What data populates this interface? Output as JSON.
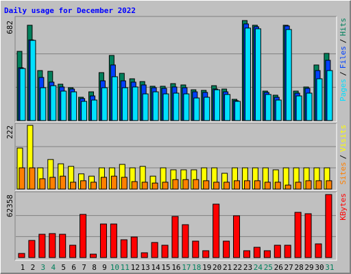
{
  "title": "Daily usage for December 2022",
  "legend_separator": "/",
  "chart_data": [
    {
      "type": "bar",
      "categories": [
        "1",
        "2",
        "3",
        "4",
        "5",
        "6",
        "7",
        "8",
        "9",
        "10",
        "11",
        "12",
        "13",
        "14",
        "15",
        "16",
        "17",
        "18",
        "19",
        "20",
        "21",
        "22",
        "23",
        "24",
        "25",
        "26",
        "27",
        "28",
        "29",
        "30",
        "31"
      ],
      "category_colors": [
        "#000000",
        "#000000",
        "#00805c",
        "#00805c",
        "#000000",
        "#000000",
        "#000000",
        "#000000",
        "#000000",
        "#00805c",
        "#00805c",
        "#000000",
        "#000000",
        "#000000",
        "#000000",
        "#000000",
        "#00805c",
        "#00805c",
        "#000000",
        "#000000",
        "#000000",
        "#000000",
        "#000000",
        "#00805c",
        "#00805c",
        "#000000",
        "#000000",
        "#000000",
        "#000000",
        "#000000",
        "#00805c"
      ],
      "series": [
        {
          "name": "Hits",
          "color": "#00805c",
          "values": [
            472,
            650,
            341,
            336,
            248,
            224,
            159,
            196,
            327,
            444,
            322,
            285,
            266,
            234,
            234,
            252,
            243,
            210,
            206,
            238,
            215,
            145,
            682,
            650,
            201,
            173,
            650,
            201,
            229,
            379,
            458
          ]
        },
        {
          "name": "Files",
          "color": "#0040ff",
          "values": [
            360,
            550,
            294,
            262,
            229,
            215,
            150,
            168,
            271,
            379,
            271,
            262,
            243,
            224,
            220,
            229,
            224,
            196,
            192,
            215,
            196,
            136,
            659,
            640,
            192,
            159,
            645,
            187,
            220,
            341,
            411
          ]
        },
        {
          "name": "Pages",
          "color": "#00e0ff",
          "values": [
            355,
            547,
            224,
            238,
            201,
            196,
            131,
            140,
            224,
            299,
            224,
            229,
            182,
            196,
            182,
            187,
            182,
            154,
            159,
            210,
            178,
            131,
            631,
            626,
            178,
            140,
            621,
            168,
            187,
            285,
            341
          ]
        }
      ],
      "ylim": [
        0,
        682
      ],
      "yticks": [
        682
      ]
    },
    {
      "type": "bar",
      "series": [
        {
          "name": "Visits",
          "color": "#ffff00",
          "values": [
            143,
            222,
            74,
            103,
            88,
            79,
            53,
            45,
            74,
            74,
            86,
            74,
            79,
            45,
            74,
            67,
            67,
            67,
            74,
            74,
            55,
            74,
            74,
            74,
            74,
            67,
            74,
            74,
            74,
            74,
            74
          ]
        },
        {
          "name": "Sites",
          "color": "#ff8000",
          "values": [
            74,
            74,
            36,
            41,
            45,
            24,
            29,
            24,
            41,
            45,
            41,
            26,
            24,
            21,
            24,
            33,
            33,
            33,
            29,
            24,
            24,
            29,
            29,
            29,
            24,
            24,
            14,
            24,
            29,
            29,
            29
          ]
        }
      ],
      "ylim": [
        0,
        222
      ],
      "yticks": [
        222
      ]
    },
    {
      "type": "bar",
      "series": [
        {
          "name": "KBytes",
          "color": "#ff0000",
          "values": [
            4068,
            16950,
            23052,
            23730,
            23052,
            12204,
            42714,
            3390,
            33222,
            33222,
            17628,
            20340,
            4746,
            14916,
            12204,
            40680,
            32544,
            16272,
            6780,
            52884,
            16272,
            41358,
            6780,
            10170,
            6780,
            12204,
            12204,
            44748,
            43392,
            13560,
            62358
          ]
        }
      ],
      "ylim": [
        0,
        62358
      ],
      "yticks": [
        62358
      ]
    }
  ]
}
